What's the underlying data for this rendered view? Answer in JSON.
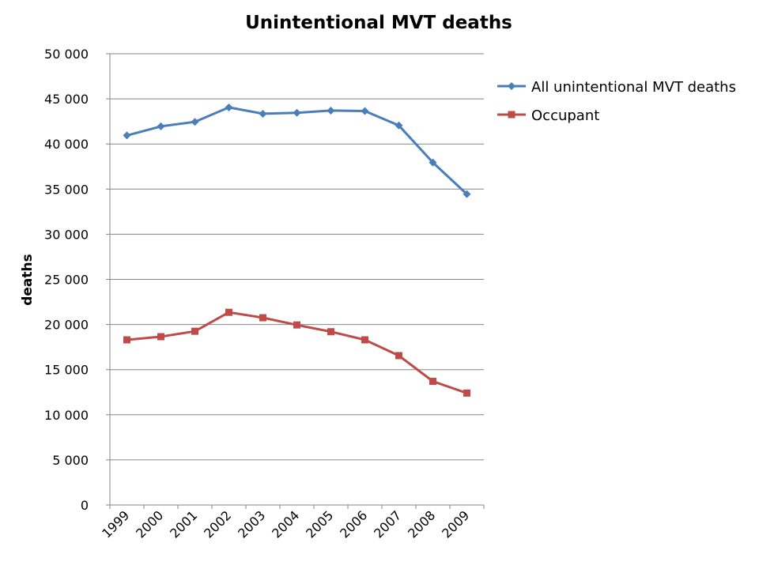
{
  "chart_data": {
    "type": "line",
    "title": "Unintentional MVT deaths",
    "xlabel": "",
    "ylabel": "deaths",
    "x": [
      "1999",
      "2000",
      "2001",
      "2002",
      "2003",
      "2004",
      "2005",
      "2006",
      "2007",
      "2008",
      "2009"
    ],
    "ylim": [
      0,
      50000
    ],
    "yticks": [
      0,
      5000,
      10000,
      15000,
      20000,
      25000,
      30000,
      35000,
      40000,
      45000,
      50000
    ],
    "ytick_labels": [
      "0",
      "5 000",
      "10 000",
      "15 000",
      "20 000",
      "25 000",
      "30 000",
      "35 000",
      "40 000",
      "45 000",
      "50 000"
    ],
    "grid": true,
    "legend_position": "top-right",
    "series": [
      {
        "name": "All unintentional MVT deaths",
        "color": "#4a7ebb",
        "marker": "diamond",
        "values": [
          40950,
          41950,
          42450,
          44050,
          43350,
          43450,
          43700,
          43650,
          42050,
          37950,
          34450
        ]
      },
      {
        "name": "Occupant",
        "color": "#be4b48",
        "marker": "square",
        "values": [
          18300,
          18650,
          19250,
          21350,
          20750,
          19950,
          19200,
          18300,
          16550,
          13700,
          12400
        ]
      }
    ]
  }
}
